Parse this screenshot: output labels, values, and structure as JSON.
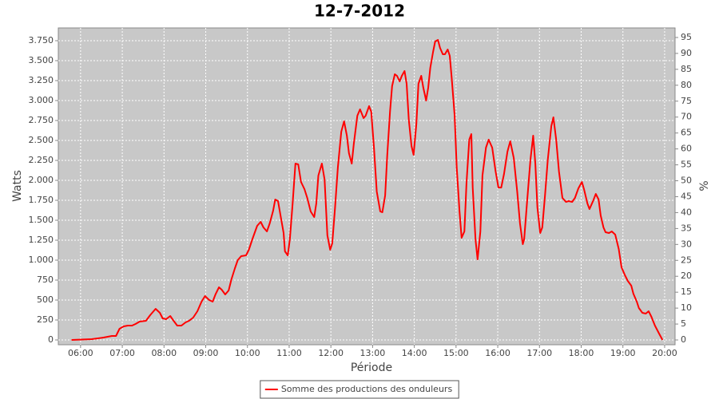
{
  "chart_data": {
    "type": "line",
    "title": "12-7-2012",
    "x_label": "Période",
    "y_label": "Watts",
    "y2_label": "%",
    "x": [
      "05:47",
      "06:16",
      "06:33",
      "06:45",
      "06:51",
      "06:56",
      "07:02",
      "07:08",
      "07:14",
      "07:19",
      "07:25",
      "07:34",
      "07:40",
      "07:48",
      "07:54",
      "07:58",
      "08:03",
      "08:09",
      "08:13",
      "08:19",
      "08:25",
      "08:31",
      "08:36",
      "08:42",
      "08:48",
      "08:54",
      "08:59",
      "09:05",
      "09:10",
      "09:14",
      "09:19",
      "09:23",
      "09:28",
      "09:33",
      "09:37",
      "09:42",
      "09:46",
      "09:51",
      "09:58",
      "10:02",
      "10:07",
      "10:14",
      "10:19",
      "10:23",
      "10:28",
      "10:32",
      "10:37",
      "10:40",
      "10:44",
      "10:48",
      "10:52",
      "10:54",
      "10:58",
      "11:01",
      "11:05",
      "11:09",
      "11:13",
      "11:17",
      "11:22",
      "11:26",
      "11:31",
      "11:36",
      "11:39",
      "11:42",
      "11:47",
      "11:51",
      "11:55",
      "11:59",
      "12:02",
      "12:06",
      "12:10",
      "12:15",
      "12:19",
      "12:23",
      "12:26",
      "12:30",
      "12:33",
      "12:38",
      "12:42",
      "12:47",
      "12:50",
      "12:55",
      "12:58",
      "13:02",
      "13:06",
      "13:11",
      "13:14",
      "13:18",
      "13:21",
      "13:25",
      "13:28",
      "13:32",
      "13:35",
      "13:39",
      "13:42",
      "13:46",
      "13:49",
      "13:52",
      "13:56",
      "13:59",
      "14:03",
      "14:06",
      "14:10",
      "14:13",
      "14:17",
      "14:20",
      "14:23",
      "14:27",
      "14:30",
      "14:34",
      "14:37",
      "14:41",
      "14:44",
      "14:48",
      "14:51",
      "14:54",
      "14:58",
      "15:01",
      "15:05",
      "15:08",
      "15:12",
      "15:15",
      "15:19",
      "15:22",
      "15:24",
      "15:28",
      "15:31",
      "15:35",
      "15:38",
      "15:43",
      "15:47",
      "15:52",
      "15:57",
      "16:01",
      "16:05",
      "16:09",
      "16:14",
      "16:18",
      "16:23",
      "16:28",
      "16:32",
      "16:36",
      "16:38",
      "16:42",
      "16:47",
      "16:51",
      "16:54",
      "16:57",
      "17:01",
      "17:04",
      "17:08",
      "17:12",
      "17:17",
      "17:20",
      "17:24",
      "17:28",
      "17:33",
      "17:38",
      "17:42",
      "17:47",
      "17:51",
      "17:56",
      "18:01",
      "18:04",
      "18:09",
      "18:12",
      "18:17",
      "18:21",
      "18:25",
      "18:28",
      "18:32",
      "18:35",
      "18:40",
      "18:44",
      "18:49",
      "18:54",
      "18:58",
      "19:03",
      "19:07",
      "19:12",
      "19:15",
      "19:20",
      "19:23",
      "19:28",
      "19:33",
      "19:37",
      "19:41",
      "19:46",
      "19:52",
      "19:57"
    ],
    "series": [
      {
        "name": "Somme des productions des onduleurs",
        "color": "#ff0000",
        "values": [
          0,
          10,
          30,
          50,
          50,
          140,
          170,
          180,
          180,
          200,
          230,
          240,
          310,
          390,
          340,
          270,
          260,
          300,
          250,
          180,
          180,
          220,
          240,
          280,
          360,
          480,
          550,
          500,
          480,
          570,
          660,
          630,
          570,
          620,
          760,
          900,
          1000,
          1050,
          1060,
          1130,
          1260,
          1430,
          1480,
          1410,
          1360,
          1460,
          1620,
          1760,
          1740,
          1540,
          1340,
          1110,
          1060,
          1260,
          1710,
          2210,
          2200,
          1980,
          1890,
          1780,
          1610,
          1540,
          1710,
          2060,
          2210,
          2010,
          1310,
          1130,
          1210,
          1660,
          2160,
          2610,
          2740,
          2560,
          2340,
          2210,
          2460,
          2810,
          2890,
          2780,
          2810,
          2930,
          2860,
          2410,
          1860,
          1610,
          1600,
          1810,
          2310,
          2860,
          3180,
          3330,
          3310,
          3240,
          3310,
          3370,
          3210,
          2760,
          2430,
          2320,
          2710,
          3210,
          3310,
          3160,
          3000,
          3160,
          3410,
          3610,
          3740,
          3760,
          3660,
          3580,
          3580,
          3640,
          3560,
          3260,
          2810,
          2160,
          1610,
          1280,
          1360,
          1960,
          2510,
          2580,
          1910,
          1260,
          1010,
          1360,
          2060,
          2410,
          2510,
          2410,
          2110,
          1910,
          1910,
          2080,
          2360,
          2490,
          2280,
          1860,
          1460,
          1200,
          1260,
          1710,
          2260,
          2560,
          2210,
          1660,
          1340,
          1410,
          1810,
          2260,
          2680,
          2790,
          2510,
          2110,
          1780,
          1730,
          1740,
          1730,
          1780,
          1900,
          1980,
          1890,
          1710,
          1640,
          1740,
          1830,
          1760,
          1560,
          1410,
          1350,
          1340,
          1360,
          1320,
          1140,
          910,
          810,
          740,
          680,
          580,
          480,
          400,
          340,
          330,
          360,
          290,
          180,
          80,
          0
        ]
      }
    ],
    "xlim": [
      "05:28",
      "20:15"
    ],
    "xticks": [
      "06:00",
      "07:00",
      "08:00",
      "09:00",
      "10:00",
      "11:00",
      "12:00",
      "13:00",
      "14:00",
      "15:00",
      "16:00",
      "17:00",
      "18:00",
      "19:00",
      "20:00"
    ],
    "ylim": [
      -60,
      3910
    ],
    "yticks": [
      0,
      {
        "value": 250,
        "label": "250"
      },
      {
        "value": 500,
        "label": "500"
      },
      {
        "value": 750,
        "label": "750"
      },
      {
        "value": 1000,
        "label": "1.000"
      },
      {
        "value": 1250,
        "label": "1.250"
      },
      {
        "value": 1500,
        "label": "1.500"
      },
      {
        "value": 1750,
        "label": "1.750"
      },
      {
        "value": 2000,
        "label": "2.000"
      },
      {
        "value": 2250,
        "label": "2.250"
      },
      {
        "value": 2500,
        "label": "2.500"
      },
      {
        "value": 2750,
        "label": "2.750"
      },
      {
        "value": 3000,
        "label": "3.000"
      },
      {
        "value": 3250,
        "label": "3.250"
      },
      {
        "value": 3500,
        "label": "3.500"
      },
      {
        "value": 3750,
        "label": "3.750"
      }
    ],
    "y2lim": [
      -1.5,
      98
    ],
    "y2ticks": [
      0,
      5,
      10,
      15,
      20,
      25,
      30,
      35,
      40,
      45,
      50,
      55,
      60,
      65,
      70,
      75,
      80,
      85,
      90,
      95
    ],
    "grid": true,
    "legend": "bottom"
  }
}
